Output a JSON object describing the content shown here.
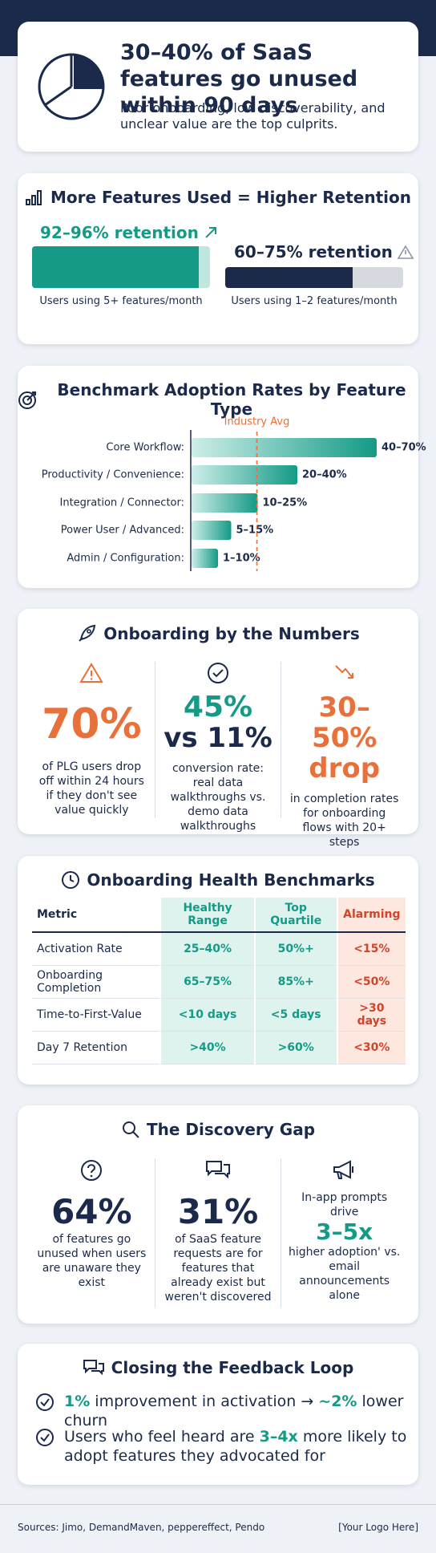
{
  "header": {
    "title": "30–40% of SaaS features go unused within 90 days",
    "subtitle": "Poor onboarding, low discoverability, and unclear value are the top culprits."
  },
  "retention": {
    "title": "More Features Used = Higher Retention",
    "items": [
      {
        "label": "92–96% retention",
        "caption": "Users using 5+ features/month"
      },
      {
        "label": "60–75% retention",
        "caption": "Users using 1–2 features/month"
      }
    ]
  },
  "benchmarks": {
    "title": "Benchmark Adoption Rates by Feature Type",
    "reference_label": "Industry Avg",
    "reference_value": 25,
    "rows": [
      {
        "label": "Core Workflow:",
        "value_label": "40–70%",
        "value": 70
      },
      {
        "label": "Productivity / Convenience:",
        "value_label": "20–40%",
        "value": 40
      },
      {
        "label": "Integration / Connector:",
        "value_label": "10–25%",
        "value": 25
      },
      {
        "label": "Power User / Advanced:",
        "value_label": "5–15%",
        "value": 15
      },
      {
        "label": "Admin / Configuration:",
        "value_label": "1–10%",
        "value": 10
      }
    ]
  },
  "onboarding": {
    "title": "Onboarding by the Numbers",
    "stats": [
      {
        "big": "70%",
        "text": "of PLG users drop off within 24 hours if they don't see value quickly"
      },
      {
        "big": "45%",
        "big2": "vs 11%",
        "text": "conversion rate: real data walkthroughs vs. demo data walkthroughs"
      },
      {
        "big": "30–50%",
        "big2": "drop",
        "text": "in completion rates for onboarding flows with 20+ steps"
      }
    ]
  },
  "health": {
    "title": "Onboarding Health Benchmarks",
    "columns": [
      "Metric",
      "Healthy Range",
      "Top Quartile",
      "Alarming"
    ],
    "rows": [
      [
        "Activation Rate",
        "25–40%",
        "50%+",
        "<15%"
      ],
      [
        "Onboarding Completion",
        "65–75%",
        "85%+",
        "<50%"
      ],
      [
        "Time-to-First-Value",
        "<10 days",
        "<5 days",
        ">30 days"
      ],
      [
        "Day 7 Retention",
        ">40%",
        ">60%",
        "<30%"
      ]
    ]
  },
  "discovery": {
    "title": "The Discovery Gap",
    "stats": [
      {
        "big": "64%",
        "text": "of features go unused when users are unaware they exist"
      },
      {
        "big": "31%",
        "text": "of SaaS feature requests are for features that already exist but weren't discovered"
      },
      {
        "pre": "In-app prompts drive",
        "big": "3–5x",
        "text": "higher adoption' vs. email announcements alone"
      }
    ]
  },
  "feedback": {
    "title": "Closing the Feedback Loop",
    "items": [
      [
        {
          "text": "1%",
          "em": true
        },
        {
          "text": " improvement in activation → "
        },
        {
          "text": "~2%",
          "em": true
        },
        {
          "text": " lower churn"
        }
      ],
      [
        {
          "text": "Users who feel heard are "
        },
        {
          "text": "3–4x",
          "em": true
        },
        {
          "text": " more likely to adopt features they advocated for"
        }
      ]
    ]
  },
  "footer": {
    "sources": "Sources: Jimo, DemandMaven, peppereffect, Pendo",
    "logo": "[Your Logo Here]"
  }
}
